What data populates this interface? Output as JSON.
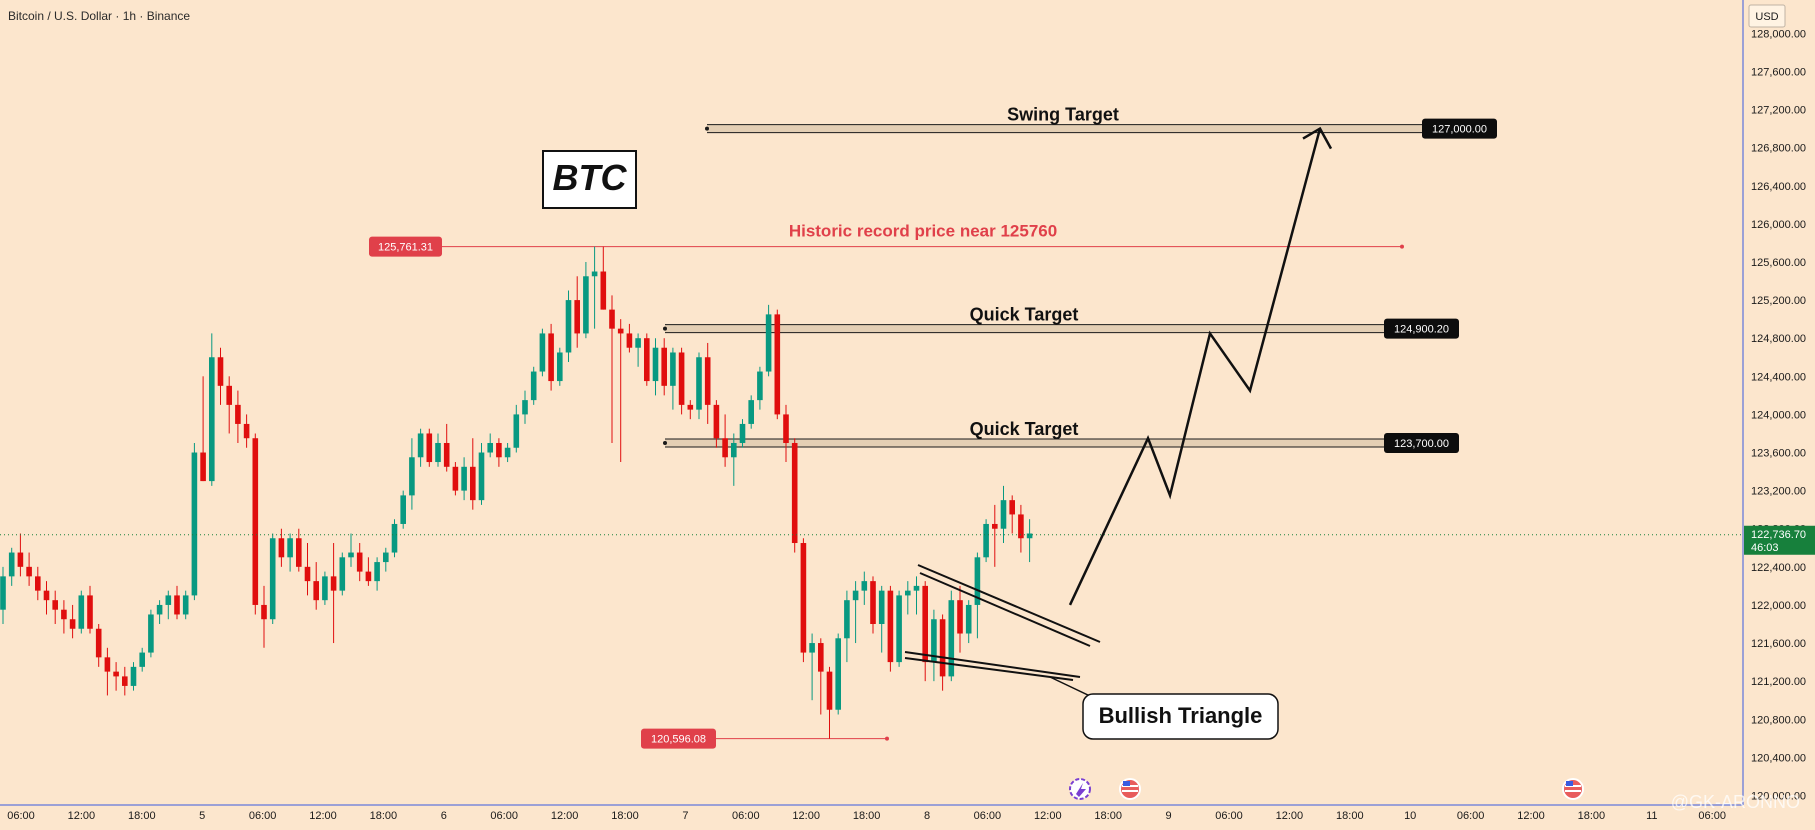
{
  "header": {
    "symbol_title": "Bitcoin / U.S. Dollar · 1h · Binance"
  },
  "price_scale": {
    "currency": "USD",
    "labels": [
      "128,000.00",
      "127,600.00",
      "127,200.00",
      "126,800.00",
      "126,400.00",
      "126,000.00",
      "125,600.00",
      "125,200.00",
      "124,800.00",
      "124,400.00",
      "124,000.00",
      "123,600.00",
      "123,200.00",
      "122,800.00",
      "122,400.00",
      "122,000.00",
      "121,600.00",
      "121,200.00",
      "120,800.00",
      "120,400.00",
      "120,000.00"
    ],
    "current_price": "122,736.70",
    "countdown": "46:03"
  },
  "time_axis": {
    "labels": [
      "06:00",
      "12:00",
      "18:00",
      "5",
      "06:00",
      "12:00",
      "18:00",
      "6",
      "06:00",
      "12:00",
      "18:00",
      "7",
      "06:00",
      "12:00",
      "18:00",
      "8",
      "06:00",
      "12:00",
      "18:00",
      "9",
      "06:00",
      "12:00",
      "18:00",
      "10",
      "06:00",
      "12:00",
      "18:00",
      "11",
      "06:00"
    ]
  },
  "chart_data": {
    "type": "candlestick",
    "interval": "1h",
    "ylim": [
      119900,
      128350
    ],
    "current_price": 122736.7,
    "candles": [
      [
        121950,
        122400,
        121800,
        122300
      ],
      [
        122300,
        122600,
        122200,
        122550
      ],
      [
        122550,
        122750,
        122300,
        122400
      ],
      [
        122400,
        122550,
        122200,
        122300
      ],
      [
        122300,
        122400,
        122050,
        122150
      ],
      [
        122150,
        122250,
        121900,
        122050
      ],
      [
        122050,
        122150,
        121800,
        121950
      ],
      [
        121950,
        122050,
        121700,
        121850
      ],
      [
        121850,
        122000,
        121650,
        121750
      ],
      [
        121750,
        122150,
        121700,
        122100
      ],
      [
        122100,
        122200,
        121700,
        121750
      ],
      [
        121750,
        121800,
        121350,
        121450
      ],
      [
        121450,
        121550,
        121050,
        121300
      ],
      [
        121300,
        121400,
        121100,
        121250
      ],
      [
        121250,
        121350,
        121050,
        121150
      ],
      [
        121150,
        121400,
        121100,
        121350
      ],
      [
        121350,
        121550,
        121300,
        121500
      ],
      [
        121500,
        121950,
        121450,
        121900
      ],
      [
        121900,
        122050,
        121800,
        122000
      ],
      [
        122000,
        122150,
        121850,
        122100
      ],
      [
        122100,
        122200,
        121850,
        121900
      ],
      [
        121900,
        122150,
        121850,
        122100
      ],
      [
        122100,
        123700,
        122050,
        123600
      ],
      [
        123600,
        124400,
        123300,
        123300
      ],
      [
        123300,
        124850,
        123250,
        124600
      ],
      [
        124600,
        124700,
        124100,
        124300
      ],
      [
        124300,
        124400,
        123800,
        124100
      ],
      [
        124100,
        124250,
        123700,
        123900
      ],
      [
        123900,
        124000,
        123650,
        123750
      ],
      [
        123750,
        123800,
        121900,
        122000
      ],
      [
        122000,
        122200,
        121550,
        121850
      ],
      [
        121850,
        122750,
        121800,
        122700
      ],
      [
        122700,
        122800,
        122400,
        122500
      ],
      [
        122500,
        122750,
        122350,
        122700
      ],
      [
        122700,
        122800,
        122350,
        122400
      ],
      [
        122400,
        122650,
        122100,
        122250
      ],
      [
        122250,
        122450,
        121950,
        122050
      ],
      [
        122050,
        122350,
        122000,
        122300
      ],
      [
        122300,
        122650,
        121600,
        122150
      ],
      [
        122150,
        122550,
        122100,
        122500
      ],
      [
        122500,
        122750,
        122400,
        122550
      ],
      [
        122550,
        122650,
        122250,
        122350
      ],
      [
        122350,
        122500,
        122200,
        122250
      ],
      [
        122250,
        122500,
        122150,
        122450
      ],
      [
        122450,
        122600,
        122350,
        122550
      ],
      [
        122550,
        122900,
        122500,
        122850
      ],
      [
        122850,
        123200,
        122800,
        123150
      ],
      [
        123150,
        123750,
        123000,
        123550
      ],
      [
        123550,
        123850,
        123450,
        123800
      ],
      [
        123800,
        123850,
        123450,
        123500
      ],
      [
        123500,
        123800,
        123450,
        123700
      ],
      [
        123700,
        123900,
        123400,
        123450
      ],
      [
        123450,
        123500,
        123150,
        123200
      ],
      [
        123200,
        123550,
        123100,
        123450
      ],
      [
        123450,
        123750,
        123000,
        123100
      ],
      [
        123100,
        123700,
        123050,
        123600
      ],
      [
        123600,
        123800,
        123550,
        123700
      ],
      [
        123700,
        123750,
        123450,
        123550
      ],
      [
        123550,
        123700,
        123500,
        123650
      ],
      [
        123650,
        124100,
        123600,
        124000
      ],
      [
        124000,
        124250,
        123900,
        124150
      ],
      [
        124150,
        124500,
        124100,
        124450
      ],
      [
        124450,
        124900,
        124400,
        124850
      ],
      [
        124850,
        124950,
        124250,
        124350
      ],
      [
        124350,
        124700,
        124300,
        124650
      ],
      [
        124650,
        125300,
        124550,
        125200
      ],
      [
        125200,
        125450,
        124700,
        124850
      ],
      [
        124850,
        125600,
        124800,
        125450
      ],
      [
        125450,
        125761.31,
        124900,
        125500
      ],
      [
        125500,
        125761.31,
        125100,
        125100
      ],
      [
        125100,
        125250,
        123700,
        124900
      ],
      [
        124900,
        125000,
        123500,
        124850
      ],
      [
        124850,
        124950,
        124650,
        124700
      ],
      [
        124700,
        124850,
        124500,
        124800
      ],
      [
        124800,
        124850,
        124300,
        124350
      ],
      [
        124350,
        124800,
        124200,
        124700
      ],
      [
        124700,
        124800,
        124200,
        124300
      ],
      [
        124300,
        124700,
        124050,
        124650
      ],
      [
        124650,
        124700,
        124000,
        124100
      ],
      [
        124100,
        124150,
        123950,
        124050
      ],
      [
        124050,
        124650,
        123950,
        124600
      ],
      [
        124600,
        124750,
        123900,
        124100
      ],
      [
        124100,
        124150,
        123650,
        123750
      ],
      [
        123750,
        124000,
        123450,
        123550
      ],
      [
        123550,
        123800,
        123250,
        123700
      ],
      [
        123700,
        123950,
        123650,
        123900
      ],
      [
        123900,
        124200,
        123850,
        124150
      ],
      [
        124150,
        124500,
        124050,
        124450
      ],
      [
        124450,
        125150,
        124400,
        125050
      ],
      [
        125050,
        125100,
        123950,
        124000
      ],
      [
        124000,
        124100,
        123500,
        123700
      ],
      [
        123700,
        123750,
        122550,
        122650
      ],
      [
        122650,
        122700,
        121400,
        121500
      ],
      [
        121500,
        121700,
        121000,
        121600
      ],
      [
        121600,
        121650,
        120850,
        121300
      ],
      [
        121300,
        121350,
        120596.08,
        120900
      ],
      [
        120900,
        121700,
        120850,
        121650
      ],
      [
        121650,
        122150,
        121400,
        122050
      ],
      [
        122050,
        122250,
        121600,
        122150
      ],
      [
        122150,
        122350,
        122000,
        122250
      ],
      [
        122250,
        122300,
        121700,
        121800
      ],
      [
        121800,
        122200,
        121500,
        122150
      ],
      [
        122150,
        122200,
        121300,
        121400
      ],
      [
        121400,
        122150,
        121350,
        122100
      ],
      [
        122100,
        122250,
        121900,
        122150
      ],
      [
        122150,
        122300,
        121900,
        122200
      ],
      [
        122200,
        122250,
        121200,
        121400
      ],
      [
        121400,
        121950,
        121200,
        121850
      ],
      [
        121850,
        121900,
        121100,
        121250
      ],
      [
        121250,
        122150,
        121200,
        122050
      ],
      [
        122050,
        122200,
        121500,
        121700
      ],
      [
        121700,
        122050,
        121600,
        122000
      ],
      [
        122000,
        122550,
        121650,
        122500
      ],
      [
        122500,
        122900,
        122450,
        122850
      ],
      [
        122850,
        123050,
        122400,
        122800
      ],
      [
        122800,
        123250,
        122650,
        123100
      ],
      [
        123100,
        123150,
        122750,
        122950
      ],
      [
        122950,
        123050,
        122550,
        122700
      ],
      [
        122700,
        122900,
        122450,
        122750
      ]
    ],
    "levels": [
      {
        "price": 127000,
        "label": "127,000.00",
        "annotation": "Swing Target"
      },
      {
        "price": 124900.2,
        "label": "124,900.20",
        "annotation": "Quick Target"
      },
      {
        "price": 123700,
        "label": "123,700.00",
        "annotation": "Quick Target"
      }
    ],
    "record_high": {
      "price": 125761.31,
      "label": "125,761.31",
      "annotation": "Historic record price near 125760"
    },
    "recent_low": {
      "price": 120596.08,
      "label": "120,596.08"
    },
    "pattern": {
      "name": "Bullish Triangle"
    },
    "ticker_box": "BTC",
    "projection_path": [
      122000,
      123750,
      123150,
      124850,
      124250,
      127000
    ]
  },
  "watermark": "@GK-ARONNO",
  "colors": {
    "up": "#089981",
    "down": "#e00e0e",
    "record": "#e0404a",
    "current": "#17803c",
    "level_fill": "#d4bfa3",
    "level_label": "#0d0d0d"
  }
}
